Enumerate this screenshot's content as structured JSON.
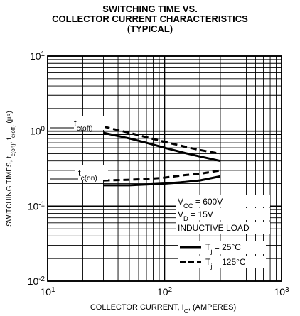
{
  "title_lines": [
    "SWITCHING TIME VS.",
    "COLLECTOR CURRENT CHARACTERISTICS",
    "(TYPICAL)"
  ],
  "chart_data": {
    "type": "line",
    "x_scale": "log",
    "y_scale": "log",
    "xlim": [
      10,
      1000
    ],
    "ylim": [
      0.01,
      10
    ],
    "grid": true,
    "x_ticks": [
      {
        "base": "10",
        "exp": "1"
      },
      {
        "base": "10",
        "exp": "2"
      },
      {
        "base": "10",
        "exp": "3"
      }
    ],
    "y_ticks": [
      {
        "base": "10",
        "exp": "-2"
      },
      {
        "base": "10",
        "exp": "-1"
      },
      {
        "base": "10",
        "exp": "0"
      },
      {
        "base": "10",
        "exp": "1"
      }
    ],
    "xlabel": {
      "pre": "COLLECTOR CURRENT, I",
      "sub": "C",
      "post": ", (AMPERES)"
    },
    "ylabel": {
      "pre": "SWITCHING TIMES, t",
      "sub1": "c(on)",
      "mid": ", t",
      "sub2": "c(off)",
      "post": " (µs)"
    },
    "series": [
      {
        "name": "tc(off) Tj = 25°C",
        "style": "solid",
        "x": [
          30,
          50,
          70,
          100,
          150,
          200,
          300
        ],
        "y": [
          0.95,
          0.8,
          0.7,
          0.6,
          0.51,
          0.46,
          0.4
        ]
      },
      {
        "name": "tc(off) Tj = 125°C",
        "style": "dashed",
        "x": [
          30,
          50,
          70,
          100,
          150,
          200,
          300
        ],
        "y": [
          1.15,
          0.95,
          0.83,
          0.72,
          0.62,
          0.56,
          0.5
        ]
      },
      {
        "name": "tc(on) Tj = 25°C",
        "style": "solid",
        "x": [
          30,
          50,
          70,
          100,
          150,
          200,
          300
        ],
        "y": [
          0.19,
          0.19,
          0.195,
          0.2,
          0.21,
          0.22,
          0.25
        ]
      },
      {
        "name": "tc(on) Tj = 125°C",
        "style": "dashed",
        "x": [
          30,
          50,
          70,
          100,
          150,
          200,
          300
        ],
        "y": [
          0.22,
          0.225,
          0.23,
          0.24,
          0.26,
          0.27,
          0.3
        ]
      }
    ],
    "curve_labels": [
      {
        "pre": "t",
        "sub": "c(off)"
      },
      {
        "pre": "t",
        "sub": "c(on)"
      }
    ],
    "annotation_lines": [
      {
        "pre": "V",
        "sub": "CC",
        "post": " = 600V"
      },
      {
        "pre": "V",
        "sub": "D",
        "post": " = 15V"
      },
      {
        "pre": "INDUCTIVE LOAD",
        "sub": "",
        "post": ""
      }
    ],
    "legend": [
      {
        "style": "solid",
        "pre": "T",
        "sub": "j",
        "post": " = 25°C"
      },
      {
        "style": "dashed",
        "pre": "T",
        "sub": "j",
        "post": " = 125°C"
      }
    ]
  }
}
